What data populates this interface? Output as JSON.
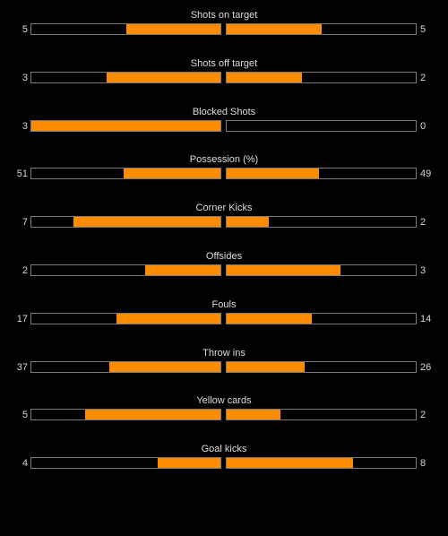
{
  "colors": {
    "background": "#000000",
    "bar_fill": "#ff8c00",
    "bar_border": "#7a7a7a",
    "text": "#d6d6d6"
  },
  "stats": [
    {
      "label": "Shots on target",
      "home": "5",
      "away": "5"
    },
    {
      "label": "Shots off target",
      "home": "3",
      "away": "2"
    },
    {
      "label": "Blocked Shots",
      "home": "3",
      "away": "0"
    },
    {
      "label": "Possession (%)",
      "home": "51",
      "away": "49"
    },
    {
      "label": "Corner Kicks",
      "home": "7",
      "away": "2"
    },
    {
      "label": "Offsides",
      "home": "2",
      "away": "3"
    },
    {
      "label": "Fouls",
      "home": "17",
      "away": "14"
    },
    {
      "label": "Throw ins",
      "home": "37",
      "away": "26"
    },
    {
      "label": "Yellow cards",
      "home": "5",
      "away": "2"
    },
    {
      "label": "Goal kicks",
      "home": "4",
      "away": "8"
    }
  ]
}
